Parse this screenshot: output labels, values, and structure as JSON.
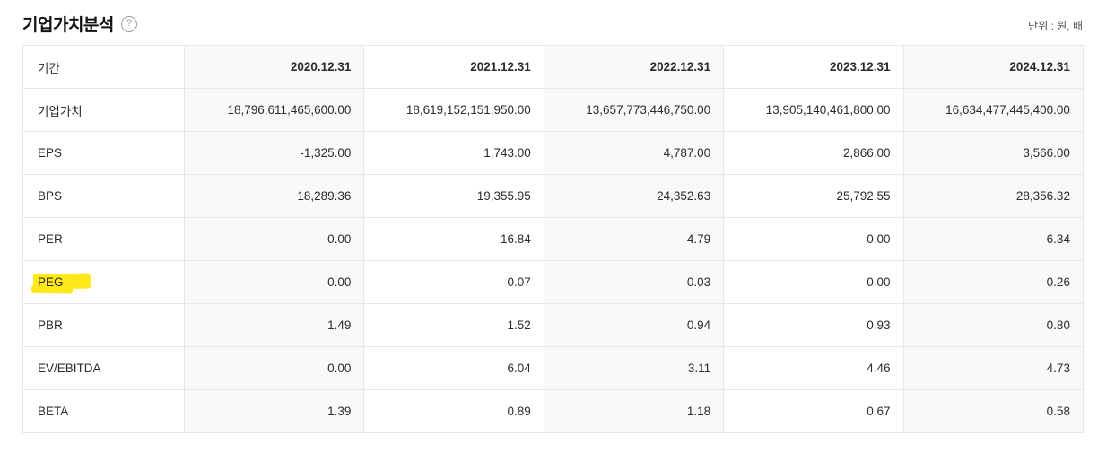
{
  "page": {
    "title": "기업가치분석",
    "help_icon_glyph": "?",
    "unit_label": "단위 : 원, 배"
  },
  "table": {
    "columns": [
      "기간",
      "2020.12.31",
      "2021.12.31",
      "2022.12.31",
      "2023.12.31",
      "2024.12.31"
    ],
    "rows": [
      {
        "label": "기업가치",
        "values": [
          "18,796,611,465,600.00",
          "18,619,152,151,950.00",
          "13,657,773,446,750.00",
          "13,905,140,461,800.00",
          "16,634,477,445,400.00"
        ],
        "highlighted": false
      },
      {
        "label": "EPS",
        "values": [
          "-1,325.00",
          "1,743.00",
          "4,787.00",
          "2,866.00",
          "3,566.00"
        ],
        "highlighted": false
      },
      {
        "label": "BPS",
        "values": [
          "18,289.36",
          "19,355.95",
          "24,352.63",
          "25,792.55",
          "28,356.32"
        ],
        "highlighted": false
      },
      {
        "label": "PER",
        "values": [
          "0.00",
          "16.84",
          "4.79",
          "0.00",
          "6.34"
        ],
        "highlighted": false
      },
      {
        "label": "PEG",
        "values": [
          "0.00",
          "-0.07",
          "0.03",
          "0.00",
          "0.26"
        ],
        "highlighted": true
      },
      {
        "label": "PBR",
        "values": [
          "1.49",
          "1.52",
          "0.94",
          "0.93",
          "0.80"
        ],
        "highlighted": false
      },
      {
        "label": "EV/EBITDA",
        "values": [
          "0.00",
          "6.04",
          "3.11",
          "4.46",
          "4.73"
        ],
        "highlighted": false
      },
      {
        "label": "BETA",
        "values": [
          "1.39",
          "0.89",
          "1.18",
          "0.67",
          "0.58"
        ],
        "highlighted": false
      }
    ]
  },
  "colors": {
    "highlight_marker": "#ffe81a",
    "stripe_background": "#f8f9fa",
    "border": "#e8e8e8",
    "title_text": "#111111",
    "body_text": "#2b2b2b",
    "unit_text": "#555555"
  }
}
